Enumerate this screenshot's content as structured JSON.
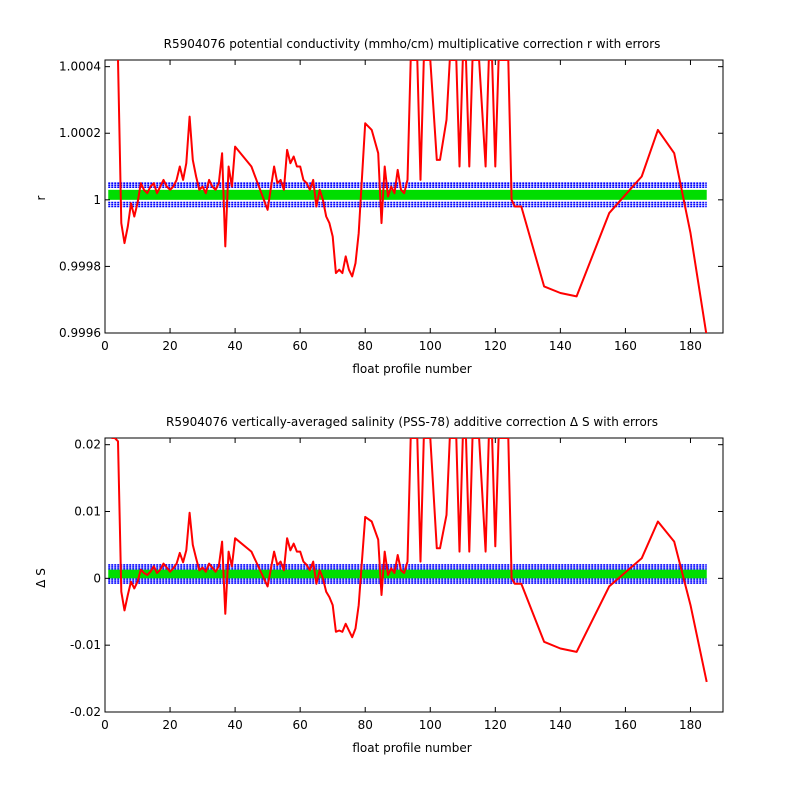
{
  "chart_data": [
    {
      "type": "line",
      "title": "R5904076 potential conductivity (mmho/cm) multiplicative correction r with errors",
      "xlabel": "float profile number",
      "ylabel": "r",
      "xlim": [
        0,
        190
      ],
      "ylim": [
        0.9996,
        1.00042
      ],
      "xticks": [
        0,
        20,
        40,
        60,
        80,
        100,
        120,
        140,
        160,
        180
      ],
      "xtick_labels": [
        "0",
        "20",
        "40",
        "60",
        "80",
        "100",
        "120",
        "140",
        "160",
        "180"
      ],
      "yticks": [
        0.9996,
        0.9998,
        1,
        1.0002,
        1.0004
      ],
      "ytick_labels": [
        "0.9996",
        "0.9998",
        "1",
        "1.0002",
        "1.0004"
      ],
      "grid": false,
      "legend": "none",
      "bands": [
        {
          "name": "",
          "color": "#0000ff",
          "lower": 0.99998,
          "upper": 1.00005,
          "x_range": [
            1,
            185
          ]
        },
        {
          "name": "",
          "color": "#00dd00",
          "lower": 1.0,
          "upper": 1.00003,
          "x_range": [
            1,
            185
          ]
        }
      ],
      "series": [
        {
          "color": "#ff0000",
          "x": [
            4,
            5,
            6,
            7,
            8,
            9,
            10,
            11,
            12,
            13,
            14,
            15,
            16,
            17,
            18,
            19,
            20,
            21,
            22,
            23,
            24,
            25,
            26,
            27,
            28,
            29,
            30,
            31,
            32,
            33,
            34,
            35,
            36,
            37,
            38,
            39,
            40,
            45,
            50,
            52,
            53,
            54,
            55,
            56,
            57,
            58,
            59,
            60,
            61,
            62,
            63,
            64,
            65,
            66,
            67,
            68,
            69,
            70,
            71,
            72,
            73,
            74,
            75,
            76,
            77,
            78,
            80,
            82,
            84,
            85,
            86,
            87,
            88,
            89,
            90,
            91,
            92,
            93,
            94,
            96,
            97,
            98,
            100,
            102,
            103,
            105,
            106,
            107,
            108,
            109,
            110,
            111,
            112,
            113,
            115,
            117,
            118,
            119,
            120,
            121,
            122,
            123,
            124,
            125,
            126,
            128,
            135,
            140,
            145,
            155,
            165,
            170,
            175,
            180,
            185
          ],
          "y": [
            1.00042,
            0.99993,
            0.99987,
            0.99992,
            0.99999,
            0.99995,
            0.99999,
            1.00005,
            1.00003,
            1.00002,
            1.00004,
            1.00005,
            1.00002,
            1.00004,
            1.00006,
            1.00004,
            1.00003,
            1.00004,
            1.00006,
            1.0001,
            1.00006,
            1.00011,
            1.00025,
            1.00012,
            1.00007,
            1.00003,
            1.00004,
            1.00002,
            1.00006,
            1.00004,
            1.00003,
            1.00005,
            1.00014,
            0.99986,
            1.0001,
            1.00004,
            1.00016,
            1.0001,
            0.99997,
            1.0001,
            1.00005,
            1.00006,
            1.00003,
            1.00015,
            1.00011,
            1.00013,
            1.0001,
            1.0001,
            1.00006,
            1.00005,
            1.00003,
            1.00006,
            0.99998,
            1.00003,
            1.0,
            0.99995,
            0.99993,
            0.99989,
            0.99978,
            0.99979,
            0.99978,
            0.99983,
            0.99979,
            0.99977,
            0.99981,
            0.9999,
            1.00023,
            1.00021,
            1.00014,
            0.99993,
            1.0001,
            1.00001,
            1.00004,
            1.00002,
            1.00009,
            1.00003,
            1.00002,
            1.00006,
            1.00042,
            1.00042,
            1.00006,
            1.00042,
            1.00042,
            1.00012,
            1.00012,
            1.00024,
            1.00042,
            1.00042,
            1.00042,
            1.0001,
            1.00042,
            1.00042,
            1.0001,
            1.00042,
            1.00042,
            1.0001,
            1.00042,
            1.00042,
            1.0001,
            1.00042,
            1.00042,
            1.00042,
            1.00042,
            1.0,
            0.99998,
            0.99998,
            0.99974,
            0.99972,
            0.99971,
            0.99996,
            1.00007,
            1.00021,
            1.00014,
            0.9999,
            0.99959
          ]
        }
      ]
    },
    {
      "type": "line",
      "title": "R5904076 vertically-averaged salinity (PSS-78) additive correction Δ S with errors",
      "xlabel": "float profile number",
      "ylabel": "Δ S",
      "xlim": [
        0,
        190
      ],
      "ylim": [
        -0.02,
        0.021
      ],
      "xticks": [
        0,
        20,
        40,
        60,
        80,
        100,
        120,
        140,
        160,
        180
      ],
      "xtick_labels": [
        "0",
        "20",
        "40",
        "60",
        "80",
        "100",
        "120",
        "140",
        "160",
        "180"
      ],
      "yticks": [
        -0.02,
        -0.01,
        0,
        0.01,
        0.02
      ],
      "ytick_labels": [
        "-0.02",
        "-0.01",
        "0",
        "0.01",
        "0.02"
      ],
      "grid": false,
      "legend": "none",
      "bands": [
        {
          "name": "",
          "color": "#0000ff",
          "lower": -0.0007,
          "upper": 0.002,
          "x_range": [
            1,
            185
          ]
        },
        {
          "name": "",
          "color": "#00dd00",
          "lower": 0.0,
          "upper": 0.0013,
          "x_range": [
            1,
            185
          ]
        }
      ],
      "series": [
        {
          "color": "#ff0000",
          "x": [
            2,
            3,
            4,
            5,
            6,
            7,
            8,
            9,
            10,
            11,
            12,
            13,
            14,
            15,
            16,
            17,
            18,
            19,
            20,
            21,
            22,
            23,
            24,
            25,
            26,
            27,
            28,
            29,
            30,
            31,
            32,
            33,
            34,
            35,
            36,
            37,
            38,
            39,
            40,
            45,
            50,
            52,
            53,
            54,
            55,
            56,
            57,
            58,
            59,
            60,
            61,
            62,
            63,
            64,
            65,
            66,
            67,
            68,
            69,
            70,
            71,
            72,
            73,
            74,
            75,
            76,
            77,
            78,
            80,
            82,
            84,
            85,
            86,
            87,
            88,
            89,
            90,
            91,
            92,
            93,
            94,
            96,
            97,
            98,
            100,
            102,
            103,
            105,
            106,
            107,
            108,
            109,
            110,
            111,
            112,
            113,
            115,
            117,
            118,
            119,
            120,
            121,
            122,
            123,
            124,
            125,
            126,
            128,
            135,
            140,
            145,
            155,
            165,
            170,
            175,
            180,
            185
          ],
          "y": [
            0.021,
            0.021,
            0.0205,
            -0.002,
            -0.0048,
            -0.0025,
            -0.0005,
            -0.0015,
            -0.0005,
            0.0013,
            0.0008,
            0.0005,
            0.001,
            0.0018,
            0.0008,
            0.0013,
            0.0022,
            0.0016,
            0.001,
            0.0015,
            0.0022,
            0.0038,
            0.0024,
            0.0042,
            0.0098,
            0.005,
            0.003,
            0.0012,
            0.0016,
            0.001,
            0.0022,
            0.0016,
            0.001,
            0.0018,
            0.0055,
            -0.0053,
            0.004,
            0.0018,
            0.006,
            0.004,
            -0.0012,
            0.004,
            0.002,
            0.0025,
            0.0012,
            0.006,
            0.0042,
            0.0052,
            0.004,
            0.004,
            0.0025,
            0.002,
            0.0012,
            0.0025,
            -0.0008,
            0.0012,
            0.0,
            -0.002,
            -0.0028,
            -0.004,
            -0.008,
            -0.0078,
            -0.008,
            -0.0068,
            -0.0078,
            -0.0088,
            -0.0075,
            -0.004,
            0.0092,
            0.0085,
            0.0058,
            -0.0025,
            0.004,
            0.0005,
            0.0015,
            0.0008,
            0.0035,
            0.0012,
            0.0008,
            0.0025,
            0.021,
            0.021,
            0.0025,
            0.021,
            0.021,
            0.0045,
            0.0045,
            0.0095,
            0.021,
            0.021,
            0.021,
            0.004,
            0.021,
            0.021,
            0.004,
            0.021,
            0.021,
            0.004,
            0.021,
            0.021,
            0.0048,
            0.021,
            0.021,
            0.021,
            0.021,
            0.0,
            -0.0008,
            -0.0008,
            -0.0095,
            -0.0105,
            -0.011,
            -0.0012,
            0.003,
            0.0085,
            0.0055,
            -0.004,
            -0.0155
          ]
        }
      ]
    }
  ]
}
